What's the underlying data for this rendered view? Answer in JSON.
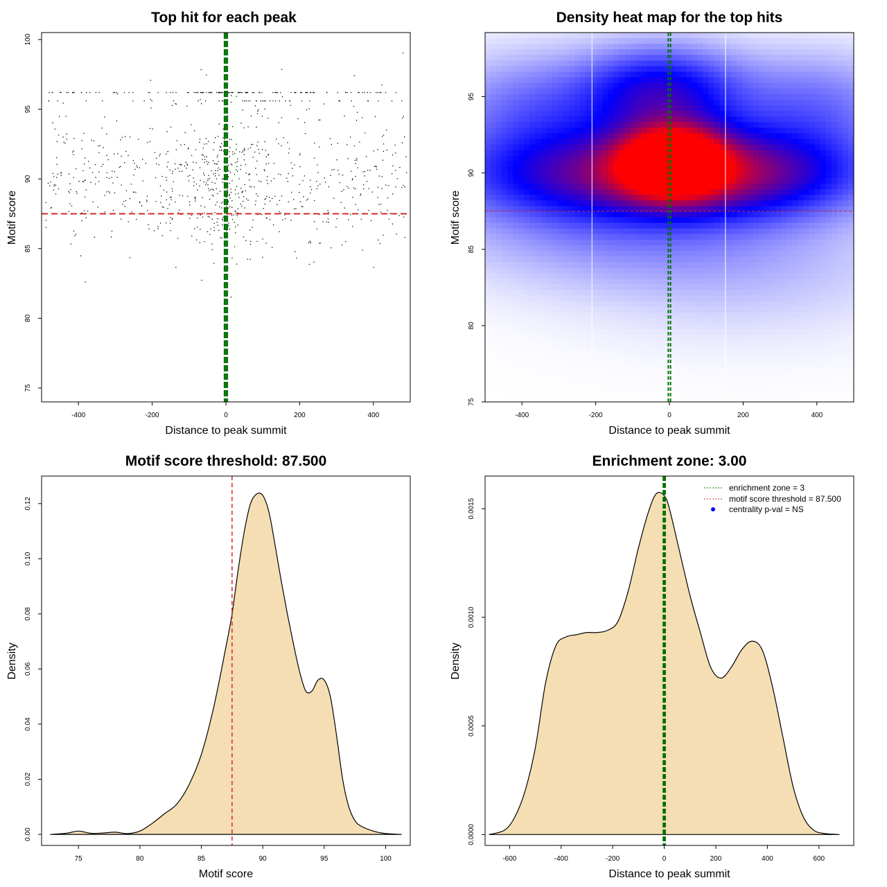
{
  "chart_data": [
    {
      "type": "scatter",
      "title": "Top hit for each peak",
      "xlabel": "Distance to peak summit",
      "ylabel": "Motif score",
      "xlim": [
        -500,
        500
      ],
      "ylim": [
        74,
        100.5
      ],
      "xticks": [
        -400,
        -200,
        0,
        200,
        400
      ],
      "xtick_labels": [
        "-400",
        "-200",
        "0",
        "200",
        "400"
      ],
      "yticks": [
        75,
        80,
        85,
        90,
        95,
        100
      ],
      "ytick_labels": [
        "75",
        "80",
        "85",
        "90",
        "95",
        "100"
      ],
      "hline": {
        "y": 87.5,
        "color": "#d62728",
        "style": "dashed"
      },
      "vlines": [
        {
          "x": -3,
          "color": "#007000"
        },
        {
          "x": 3,
          "color": "#007000"
        }
      ],
      "n_points": 1000,
      "seed": 7,
      "point_color": "#000000"
    },
    {
      "type": "heatmap",
      "title": "Density heat map for the top hits",
      "xlabel": "Distance to peak summit",
      "ylabel": "Motif score",
      "xlim": [
        -500,
        500
      ],
      "ylim": [
        75,
        99.2
      ],
      "xticks": [
        -400,
        -200,
        0,
        200,
        400
      ],
      "xtick_labels": [
        "-400",
        "-200",
        "0",
        "200",
        "400"
      ],
      "yticks": [
        75,
        80,
        85,
        90,
        95
      ],
      "ytick_labels": [
        "75",
        "80",
        "85",
        "90",
        "95"
      ],
      "hline": {
        "y": 87.5,
        "color": "#d62728",
        "style": "dashed"
      },
      "vlines": [
        {
          "x": -3,
          "color": "#007000"
        },
        {
          "x": 3,
          "color": "#007000"
        }
      ],
      "white_lines_x": [
        -210,
        152
      ],
      "colors": {
        "low": "#ffffff",
        "mid": "#0000ff",
        "high": "#ff0000"
      },
      "blobs": [
        {
          "cx": 10,
          "cy": 90.8,
          "sx": 95,
          "sy": 1.6,
          "w": 1.0
        },
        {
          "cx": -150,
          "cy": 90.0,
          "sx": 280,
          "sy": 2.0,
          "w": 0.55
        },
        {
          "cx": 220,
          "cy": 90.0,
          "sx": 220,
          "sy": 1.9,
          "w": 0.45
        },
        {
          "cx": -20,
          "cy": 95.3,
          "sx": 140,
          "sy": 1.9,
          "w": 0.45
        },
        {
          "cx": -350,
          "cy": 94.2,
          "sx": 180,
          "sy": 2.3,
          "w": 0.2
        },
        {
          "cx": 380,
          "cy": 94.2,
          "sx": 170,
          "sy": 2.3,
          "w": 0.2
        },
        {
          "cx": -150,
          "cy": 86.3,
          "sx": 300,
          "sy": 2.4,
          "w": 0.12
        },
        {
          "cx": 200,
          "cy": 84.3,
          "sx": 300,
          "sy": 3.0,
          "w": 0.07
        }
      ]
    },
    {
      "type": "area",
      "title": "Motif score threshold: 87.500",
      "xlabel": "Motif score",
      "ylabel": "Density",
      "xlim": [
        72,
        102
      ],
      "ylim": [
        -0.004,
        0.13
      ],
      "xticks": [
        75,
        80,
        85,
        90,
        95,
        100
      ],
      "xtick_labels": [
        "75",
        "80",
        "85",
        "90",
        "95",
        "100"
      ],
      "yticks": [
        0,
        0.02,
        0.04,
        0.06,
        0.08,
        0.1,
        0.12
      ],
      "ytick_labels": [
        "0.00",
        "0.02",
        "0.04",
        "0.06",
        "0.08",
        "0.10",
        "0.12"
      ],
      "fill_color": "#f5deb3",
      "vline": {
        "x": 87.5,
        "color": "#d62728",
        "style": "dashed"
      },
      "x": [
        72.7,
        74,
        75,
        76,
        77,
        78,
        79,
        80,
        81,
        82,
        83,
        84,
        85,
        86,
        87,
        87.5,
        88,
        88.5,
        89,
        89.5,
        90,
        90.5,
        91,
        91.5,
        92,
        92.5,
        93,
        93.5,
        94,
        94.5,
        95,
        95.5,
        96,
        96.5,
        97,
        97.5,
        98,
        99,
        100,
        101.3
      ],
      "y": [
        0,
        0.0004,
        0.0012,
        0.0004,
        0.0005,
        0.0008,
        0.0003,
        0.0012,
        0.004,
        0.0075,
        0.011,
        0.018,
        0.029,
        0.046,
        0.068,
        0.08,
        0.096,
        0.11,
        0.12,
        0.1235,
        0.123,
        0.117,
        0.105,
        0.092,
        0.08,
        0.069,
        0.059,
        0.052,
        0.052,
        0.056,
        0.056,
        0.05,
        0.036,
        0.02,
        0.01,
        0.005,
        0.003,
        0.0012,
        0.0003,
        0
      ]
    },
    {
      "type": "area",
      "title": "Enrichment zone: 3.00",
      "xlabel": "Distance to peak summit",
      "ylabel": "Density",
      "xlim": [
        -695,
        735
      ],
      "ylim": [
        -5e-05,
        0.00165
      ],
      "xticks": [
        -600,
        -400,
        -200,
        0,
        200,
        400,
        600
      ],
      "xtick_labels": [
        "-600",
        "-400",
        "-200",
        "0",
        "200",
        "400",
        "600"
      ],
      "yticks": [
        0,
        0.0005,
        0.001,
        0.0015
      ],
      "ytick_labels": [
        "0.0000",
        "0.0005",
        "0.0010",
        "0.0015"
      ],
      "fill_color": "#f5deb3",
      "vlines": [
        {
          "x": -3,
          "color": "#007000"
        },
        {
          "x": 3,
          "color": "#007000"
        }
      ],
      "x": [
        -680,
        -620,
        -580,
        -540,
        -500,
        -460,
        -420,
        -380,
        -340,
        -300,
        -260,
        -220,
        -180,
        -140,
        -100,
        -60,
        -30,
        0,
        20,
        60,
        100,
        140,
        180,
        220,
        260,
        300,
        340,
        380,
        420,
        460,
        500,
        540,
        580,
        620,
        680
      ],
      "y": [
        0,
        2e-05,
        8e-05,
        0.0002,
        0.0004,
        0.0007,
        0.00087,
        0.00091,
        0.00092,
        0.00093,
        0.00093,
        0.00094,
        0.00098,
        0.00112,
        0.00132,
        0.00149,
        0.00157,
        0.00156,
        0.0015,
        0.0013,
        0.0011,
        0.00093,
        0.00077,
        0.00072,
        0.00077,
        0.00085,
        0.00089,
        0.00085,
        0.00068,
        0.00045,
        0.00022,
        8e-05,
        2e-05,
        5e-06,
        0
      ]
    }
  ],
  "legend": {
    "items": [
      {
        "label": "enrichment zone = 3",
        "color": "#007000",
        "type": "line"
      },
      {
        "label": "motif score threshold = 87.500",
        "color": "#d62728",
        "type": "line"
      },
      {
        "label": "centrality p-val = NS",
        "color": "#0000ff",
        "type": "point"
      }
    ]
  }
}
